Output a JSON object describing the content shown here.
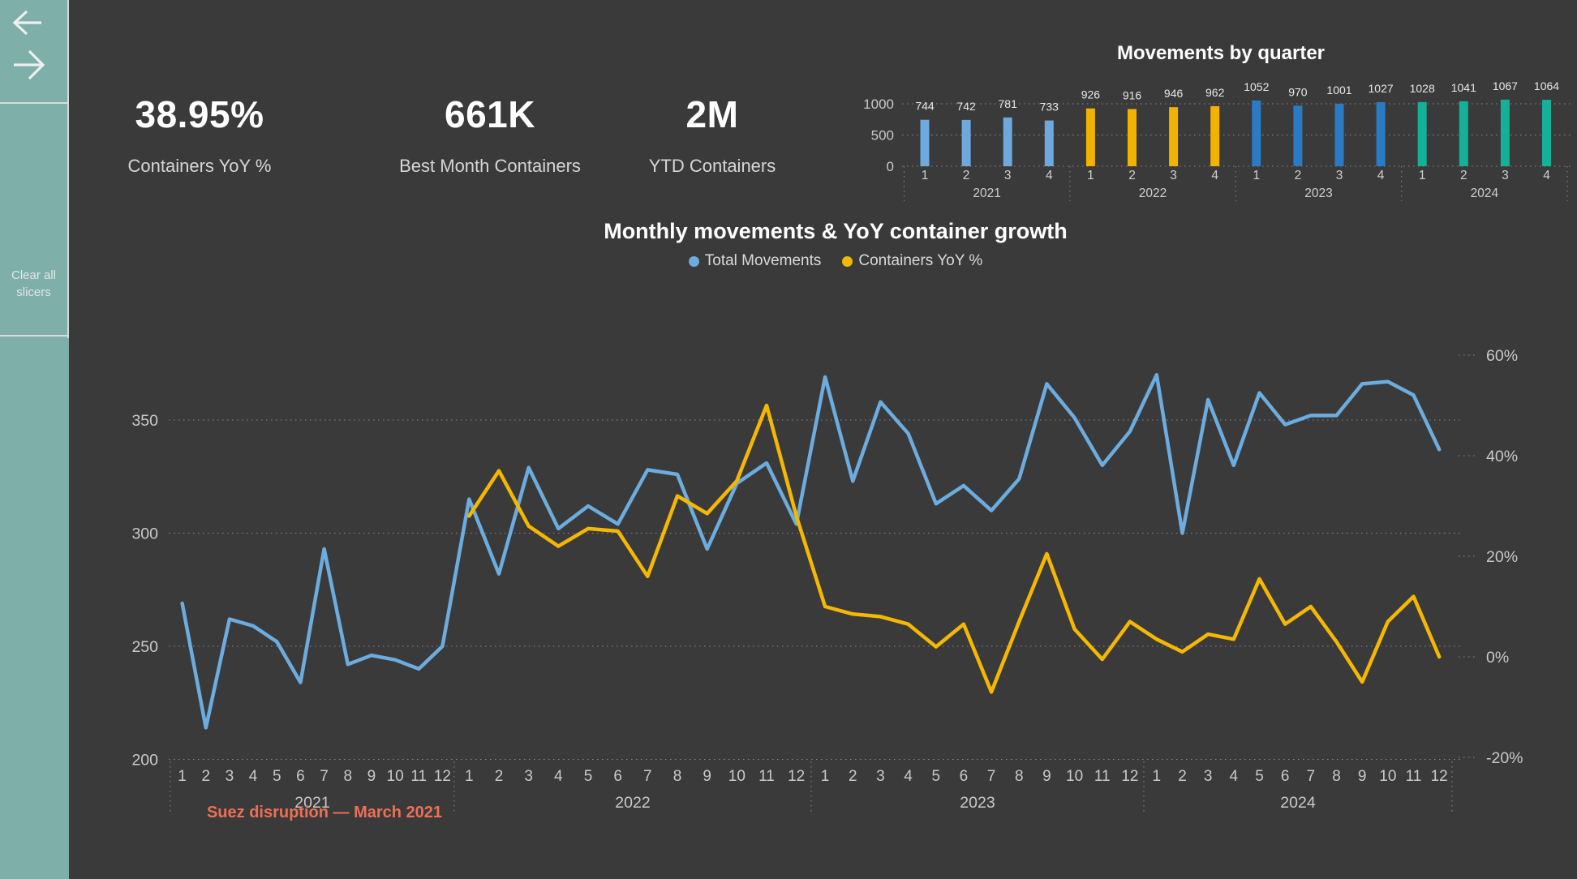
{
  "page": {
    "background": "#3A3A3A",
    "sidebar_color": "#7FAFA9"
  },
  "sidebar": {
    "back_icon": "left-arrow",
    "forward_icon": "right-arrow",
    "clear_slicers_label": "Clear all slicers"
  },
  "kpis": [
    {
      "value": "38.95%",
      "label": "Containers YoY %"
    },
    {
      "value": "661K",
      "label": "Best Month Containers"
    },
    {
      "value": "2M",
      "label": "YTD Containers"
    }
  ],
  "chart_data": [
    {
      "id": "movements-by-quarter",
      "type": "bar",
      "title": "Movements by quarter",
      "categories": [
        "1",
        "2",
        "3",
        "4",
        "1",
        "2",
        "3",
        "4",
        "1",
        "2",
        "3",
        "4",
        "1",
        "2",
        "3",
        "4"
      ],
      "group_labels": [
        "2021",
        "2022",
        "2023",
        "2024"
      ],
      "series": [
        {
          "name": "2021",
          "color": "#6FA8DC",
          "values": [
            744,
            742,
            781,
            733
          ]
        },
        {
          "name": "2022",
          "color": "#F2B200",
          "values": [
            926,
            916,
            946,
            962
          ]
        },
        {
          "name": "2023",
          "color": "#2B7BC4",
          "values": [
            1052,
            970,
            1001,
            1027
          ]
        },
        {
          "name": "2024",
          "color": "#14B09A",
          "values": [
            1028,
            1041,
            1067,
            1064
          ]
        }
      ],
      "xlabel": "",
      "ylabel": "",
      "yticks": [
        0,
        500,
        1000
      ],
      "ylim": [
        0,
        1100
      ],
      "grid": "dotted",
      "data_labels": true
    },
    {
      "id": "monthly-movements-yoy",
      "type": "line",
      "title": "Monthly movements & YoY container growth",
      "legend_position": "top",
      "years": [
        "2021",
        "2022",
        "2023",
        "2024"
      ],
      "month_labels": [
        "1",
        "2",
        "3",
        "4",
        "5",
        "6",
        "7",
        "8",
        "9",
        "10",
        "11",
        "12"
      ],
      "left_axis": {
        "ticks": [
          350,
          300,
          250,
          200
        ],
        "ylim": [
          200,
          380
        ]
      },
      "right_axis": {
        "ticks": [
          "60%",
          "40%",
          "20%",
          "0%",
          "-20%"
        ],
        "ylim": [
          -20,
          60
        ]
      },
      "grid": "dotted",
      "series": [
        {
          "name": "Total Movements",
          "axis": "left",
          "color": "#6CACDE",
          "values": [
            269,
            214,
            262,
            259,
            252,
            234,
            293,
            242,
            246,
            244,
            240,
            250,
            315,
            282,
            329,
            302,
            312,
            304,
            328,
            326,
            293,
            322,
            331,
            304,
            369,
            323,
            358,
            344,
            313,
            321,
            310,
            324,
            366,
            351,
            330,
            345,
            370,
            300,
            359,
            330,
            362,
            348,
            352,
            352,
            366,
            367,
            361,
            337
          ]
        },
        {
          "name": "Containers YoY %",
          "axis": "right",
          "color": "#F5B800",
          "values": [
            null,
            null,
            null,
            null,
            null,
            null,
            null,
            null,
            null,
            null,
            null,
            null,
            28,
            37,
            26,
            22,
            25.5,
            25,
            16,
            32,
            28.5,
            35,
            50,
            28,
            10,
            8.5,
            8,
            6.5,
            2,
            6.5,
            -7,
            7,
            20.5,
            5.5,
            -0.5,
            7,
            3.5,
            1,
            4.5,
            3.5,
            15.5,
            6.5,
            10,
            3,
            -5,
            7,
            12,
            0
          ]
        }
      ],
      "annotation": {
        "text": "Suez disruption — March 2021",
        "color": "#EE6F55"
      }
    }
  ]
}
